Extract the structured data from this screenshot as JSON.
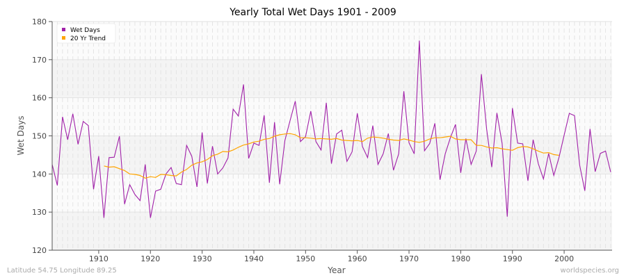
{
  "chart_data": {
    "type": "line",
    "title": "Yearly Total Wet Days 1901 - 2009",
    "xlabel": "Year",
    "ylabel": "Wet Days",
    "xlim": [
      1901,
      2009
    ],
    "ylim": [
      120,
      180
    ],
    "xticks": [
      1910,
      1920,
      1930,
      1940,
      1950,
      1960,
      1970,
      1980,
      1990,
      2000
    ],
    "yticks": [
      120,
      130,
      140,
      150,
      160,
      170,
      180
    ],
    "grid": true,
    "legend_position": "top-left",
    "series": [
      {
        "name": "Wet Days",
        "color": "#a020a8",
        "x_start": 1901,
        "values": [
          142.5,
          137,
          155,
          149,
          155.8,
          147.8,
          153.8,
          152.7,
          136,
          144.7,
          128.5,
          144.3,
          144.4,
          149.9,
          132.1,
          137.2,
          134.6,
          133,
          142.5,
          128.5,
          135.5,
          136,
          140,
          141.7,
          137.5,
          137.2,
          147.5,
          144.6,
          136.6,
          150.9,
          137.5,
          147.3,
          140,
          141.6,
          144.2,
          157,
          155.2,
          163.5,
          144.1,
          148.1,
          147.5,
          155.4,
          137.7,
          153.6,
          137.3,
          148.8,
          154,
          159.1,
          148.5,
          149.8,
          156.5,
          148.5,
          146.3,
          158.7,
          142.7,
          150.5,
          151.5,
          143.3,
          145.8,
          155.9,
          147.2,
          144.3,
          152.7,
          142.5,
          145.3,
          150.6,
          141,
          145.3,
          161.7,
          148.2,
          145.3,
          175,
          146.1,
          148,
          153.3,
          138.5,
          145.3,
          149.5,
          153,
          140.3,
          149.3,
          142.5,
          146,
          166.2,
          151.8,
          141.8,
          156,
          148,
          128.8,
          157.3,
          148.1,
          147.9,
          138.2,
          149,
          142.7,
          138.7,
          145.4,
          139.6,
          144.3,
          150.2,
          155.9,
          155.3,
          142.3,
          135.6,
          151.8,
          140.6,
          145.4,
          146,
          140.5
        ]
      },
      {
        "name": "20 Yr Trend",
        "color": "#ffa500",
        "x_start": 1911,
        "values": [
          142.1,
          141.8,
          141.9,
          141.4,
          140.9,
          140,
          139.9,
          139.6,
          138.9,
          139.3,
          139.1,
          139.9,
          139.8,
          139.6,
          139.5,
          140.5,
          141.2,
          142.3,
          142.9,
          143.2,
          143.8,
          144.8,
          145.2,
          145.9,
          145.8,
          146.3,
          147,
          147.6,
          147.9,
          148.4,
          148.6,
          149.1,
          149.3,
          149.9,
          150.3,
          150.5,
          150.6,
          150.3,
          149.5,
          149.5,
          149.4,
          149.2,
          149.3,
          149.2,
          149.1,
          149.3,
          148.9,
          148.8,
          148.7,
          148.8,
          148.5,
          149.4,
          149.7,
          149.6,
          149.4,
          149.1,
          148.9,
          148.8,
          149.2,
          148.9,
          148.5,
          148.3,
          148.6,
          149.2,
          149.5,
          149.5,
          149.7,
          149.9,
          149.2,
          149,
          149,
          149,
          147.5,
          147.5,
          147.1,
          146.8,
          146.9,
          146.6,
          146.4,
          146.2,
          146.9,
          147.2,
          147.1,
          146.6,
          146,
          145.5,
          145.6,
          145.1,
          144.9
        ]
      }
    ]
  },
  "footer": {
    "location": "Latitude 54.75 Longitude 89.25",
    "site": "worldspecies.org"
  }
}
